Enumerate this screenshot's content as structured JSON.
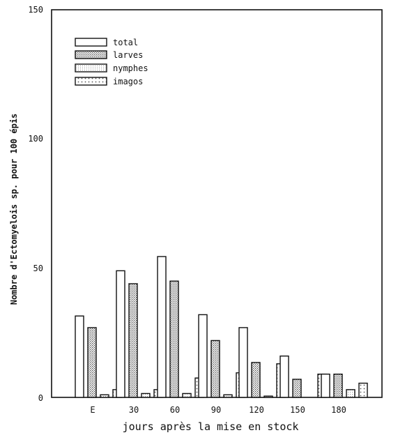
{
  "chart_data": {
    "type": "bar",
    "title": "",
    "xlabel": "jours après la mise en stock",
    "ylabel": "Nombre d'Ectomyelois sp. pour 100 épis",
    "ylim": [
      0,
      150
    ],
    "yticks": [
      "0",
      "50",
      "100",
      "150"
    ],
    "categories": [
      "E",
      "30",
      "60",
      "90",
      "120",
      "150",
      "180"
    ],
    "series": [
      {
        "name": "total",
        "pattern": "open",
        "values": [
          31.5,
          49,
          54.5,
          32,
          27,
          16,
          9
        ]
      },
      {
        "name": "larves",
        "pattern": "hatched",
        "values": [
          27,
          44,
          45,
          22,
          13.5,
          7,
          9
        ]
      },
      {
        "name": "nymphes",
        "pattern": "dotted",
        "values": [
          1,
          1.5,
          1.5,
          1,
          0.5,
          0,
          3
        ]
      },
      {
        "name": "imagos",
        "pattern": "spotted",
        "values": [
          3,
          3,
          7.5,
          9.5,
          13,
          9,
          5.5
        ]
      }
    ],
    "legend_position": "top-left",
    "grid": false
  }
}
